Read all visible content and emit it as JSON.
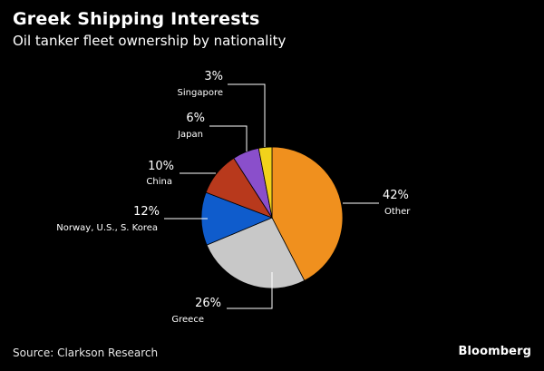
{
  "header": {
    "title": "Greek Shipping Interests",
    "subtitle": "Oil tanker fleet ownership by nationality"
  },
  "footer": {
    "source": "Source: Clarkson Research",
    "brand": "Bloomberg"
  },
  "chart_data": {
    "type": "pie",
    "title": "Greek Shipping Interests",
    "subtitle": "Oil tanker fleet ownership by nationality",
    "unit": "%",
    "start_angle_deg": 0,
    "direction": "clockwise",
    "slices": [
      {
        "label": "Other",
        "value": 42,
        "value_label": "42%",
        "color": "#f0901e"
      },
      {
        "label": "Greece",
        "value": 26,
        "value_label": "26%",
        "color": "#c8c8c8"
      },
      {
        "label": "Norway, U.S., S. Korea",
        "value": 12,
        "value_label": "12%",
        "color": "#0f5ccc"
      },
      {
        "label": "China",
        "value": 10,
        "value_label": "10%",
        "color": "#b8391c"
      },
      {
        "label": "Japan",
        "value": 6,
        "value_label": "6%",
        "color": "#8a4fcb"
      },
      {
        "label": "Singapore",
        "value": 3,
        "value_label": "3%",
        "color": "#f2d21b"
      }
    ]
  }
}
